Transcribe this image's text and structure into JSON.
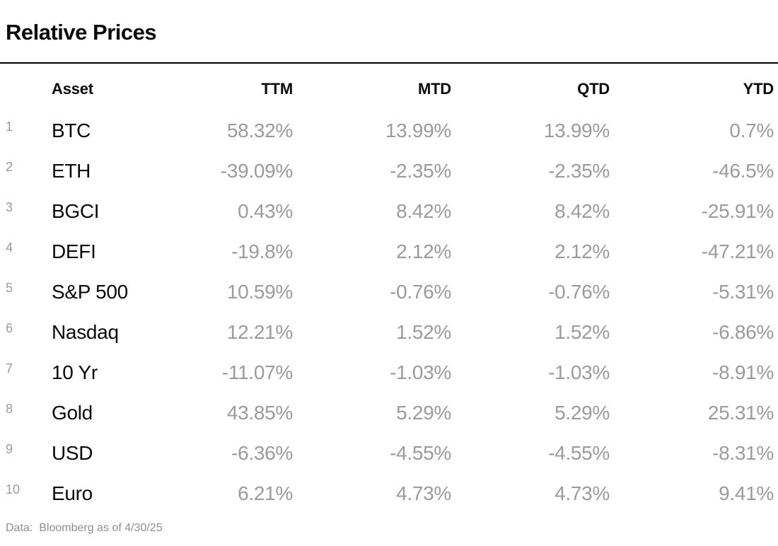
{
  "title": "Relative Prices",
  "table": {
    "headers": {
      "asset": "Asset",
      "ttm": "TTM",
      "mtd": "MTD",
      "qtd": "QTD",
      "ytd": "YTD"
    },
    "rows": [
      {
        "num": "1",
        "asset": "BTC",
        "ttm": "58.32%",
        "mtd": "13.99%",
        "qtd": "13.99%",
        "ytd": "0.7%"
      },
      {
        "num": "2",
        "asset": "ETH",
        "ttm": "-39.09%",
        "mtd": "-2.35%",
        "qtd": "-2.35%",
        "ytd": "-46.5%"
      },
      {
        "num": "3",
        "asset": "BGCI",
        "ttm": "0.43%",
        "mtd": "8.42%",
        "qtd": "8.42%",
        "ytd": "-25.91%"
      },
      {
        "num": "4",
        "asset": "DEFI",
        "ttm": "-19.8%",
        "mtd": "2.12%",
        "qtd": "2.12%",
        "ytd": "-47.21%"
      },
      {
        "num": "5",
        "asset": "S&P 500",
        "ttm": "10.59%",
        "mtd": "-0.76%",
        "qtd": "-0.76%",
        "ytd": "-5.31%"
      },
      {
        "num": "6",
        "asset": "Nasdaq",
        "ttm": "12.21%",
        "mtd": "1.52%",
        "qtd": "1.52%",
        "ytd": "-6.86%"
      },
      {
        "num": "7",
        "asset": "10 Yr",
        "ttm": "-11.07%",
        "mtd": "-1.03%",
        "qtd": "-1.03%",
        "ytd": "-8.91%"
      },
      {
        "num": "8",
        "asset": "Gold",
        "ttm": "43.85%",
        "mtd": "5.29%",
        "qtd": "5.29%",
        "ytd": "25.31%"
      },
      {
        "num": "9",
        "asset": "USD",
        "ttm": "-6.36%",
        "mtd": "-4.55%",
        "qtd": "-4.55%",
        "ytd": "-8.31%"
      },
      {
        "num": "10",
        "asset": "Euro",
        "ttm": "6.21%",
        "mtd": "4.73%",
        "qtd": "4.73%",
        "ytd": "9.41%"
      }
    ]
  },
  "footer": {
    "label": "Data:",
    "source": "Bloomberg as of 4/30/25"
  },
  "colors": {
    "background": "#ffffff",
    "text_primary": "#0a0a0a",
    "text_muted": "#9b9b9b",
    "footer_text": "#8f8f8f",
    "rule": "#000000"
  },
  "chart_data": {
    "type": "table",
    "title": "Relative Prices",
    "columns": [
      "Asset",
      "TTM",
      "MTD",
      "QTD",
      "YTD"
    ],
    "rows": [
      [
        "BTC",
        "58.32%",
        "13.99%",
        "13.99%",
        "0.7%"
      ],
      [
        "ETH",
        "-39.09%",
        "-2.35%",
        "-2.35%",
        "-46.5%"
      ],
      [
        "BGCI",
        "0.43%",
        "8.42%",
        "8.42%",
        "-25.91%"
      ],
      [
        "DEFI",
        "-19.8%",
        "2.12%",
        "2.12%",
        "-47.21%"
      ],
      [
        "S&P 500",
        "10.59%",
        "-0.76%",
        "-0.76%",
        "-5.31%"
      ],
      [
        "Nasdaq",
        "12.21%",
        "1.52%",
        "1.52%",
        "-6.86%"
      ],
      [
        "10 Yr",
        "-11.07%",
        "-1.03%",
        "-1.03%",
        "-8.91%"
      ],
      [
        "Gold",
        "43.85%",
        "5.29%",
        "5.29%",
        "25.31%"
      ],
      [
        "USD",
        "-6.36%",
        "-4.55%",
        "-4.55%",
        "-8.31%"
      ],
      [
        "Euro",
        "6.21%",
        "4.73%",
        "4.73%",
        "9.41%"
      ]
    ],
    "source_note": "Data: Bloomberg as of 4/30/25"
  }
}
